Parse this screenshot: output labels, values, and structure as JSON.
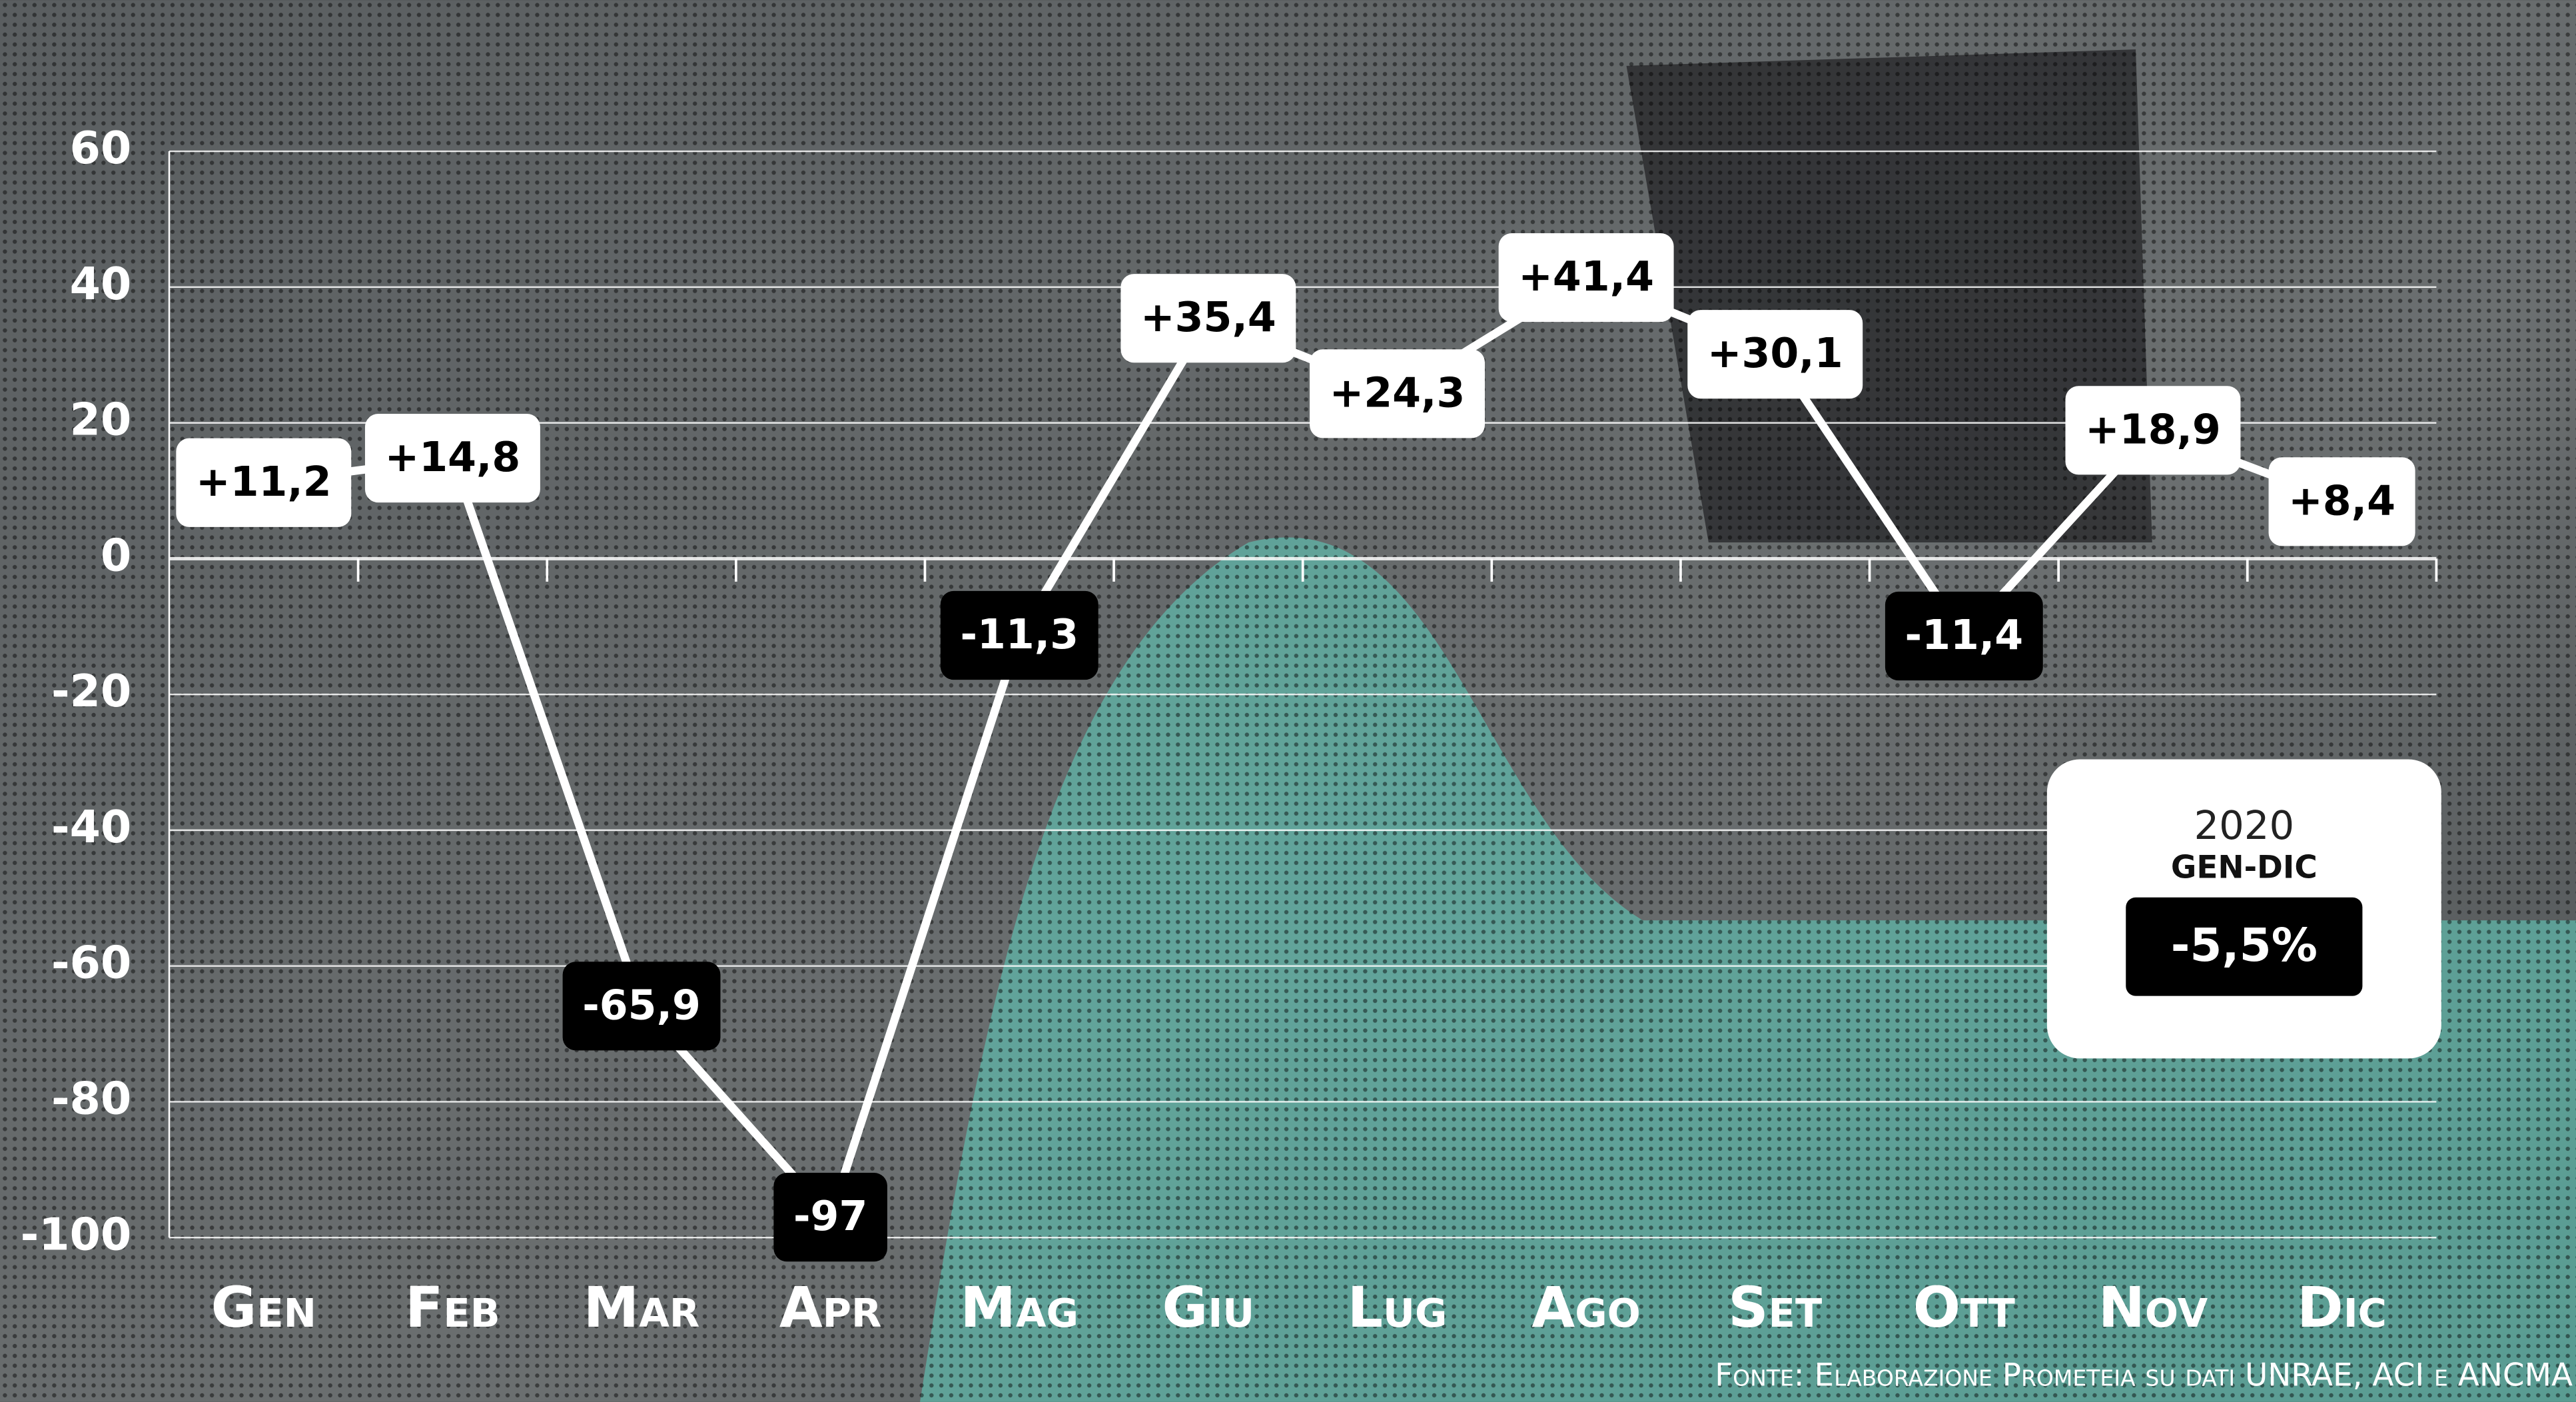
{
  "chart_data": {
    "type": "line",
    "categories": [
      "Gen",
      "Feb",
      "Mar",
      "Apr",
      "Mag",
      "Giu",
      "Lug",
      "Ago",
      "Set",
      "Ott",
      "Nov",
      "Dic"
    ],
    "series": [
      {
        "color": "#ffffff",
        "values": [
          11.2,
          14.8,
          -65.9,
          -97,
          -11.3,
          35.4,
          24.3,
          41.4,
          30.1,
          -11.4,
          18.9,
          8.4
        ],
        "value_labels": [
          "+11,2",
          "+14,8",
          "-65,9",
          "-97",
          "-11,3",
          "+35,4",
          "+24,3",
          "+41,4",
          "+30,1",
          "-11,4",
          "+18,9",
          "+8,4"
        ]
      }
    ],
    "ylim": [
      -100,
      60
    ],
    "yticks": [
      60,
      40,
      20,
      0,
      -20,
      -40,
      -60,
      -80,
      -100
    ],
    "grid": true,
    "summary": {
      "year": "2020",
      "period": "GEN-DIC",
      "value": -5.5,
      "value_label": "-5,5%"
    },
    "source": "Fonte: Elaborazione Prometeia su dati UNRAE, ACI e ANCMA"
  }
}
